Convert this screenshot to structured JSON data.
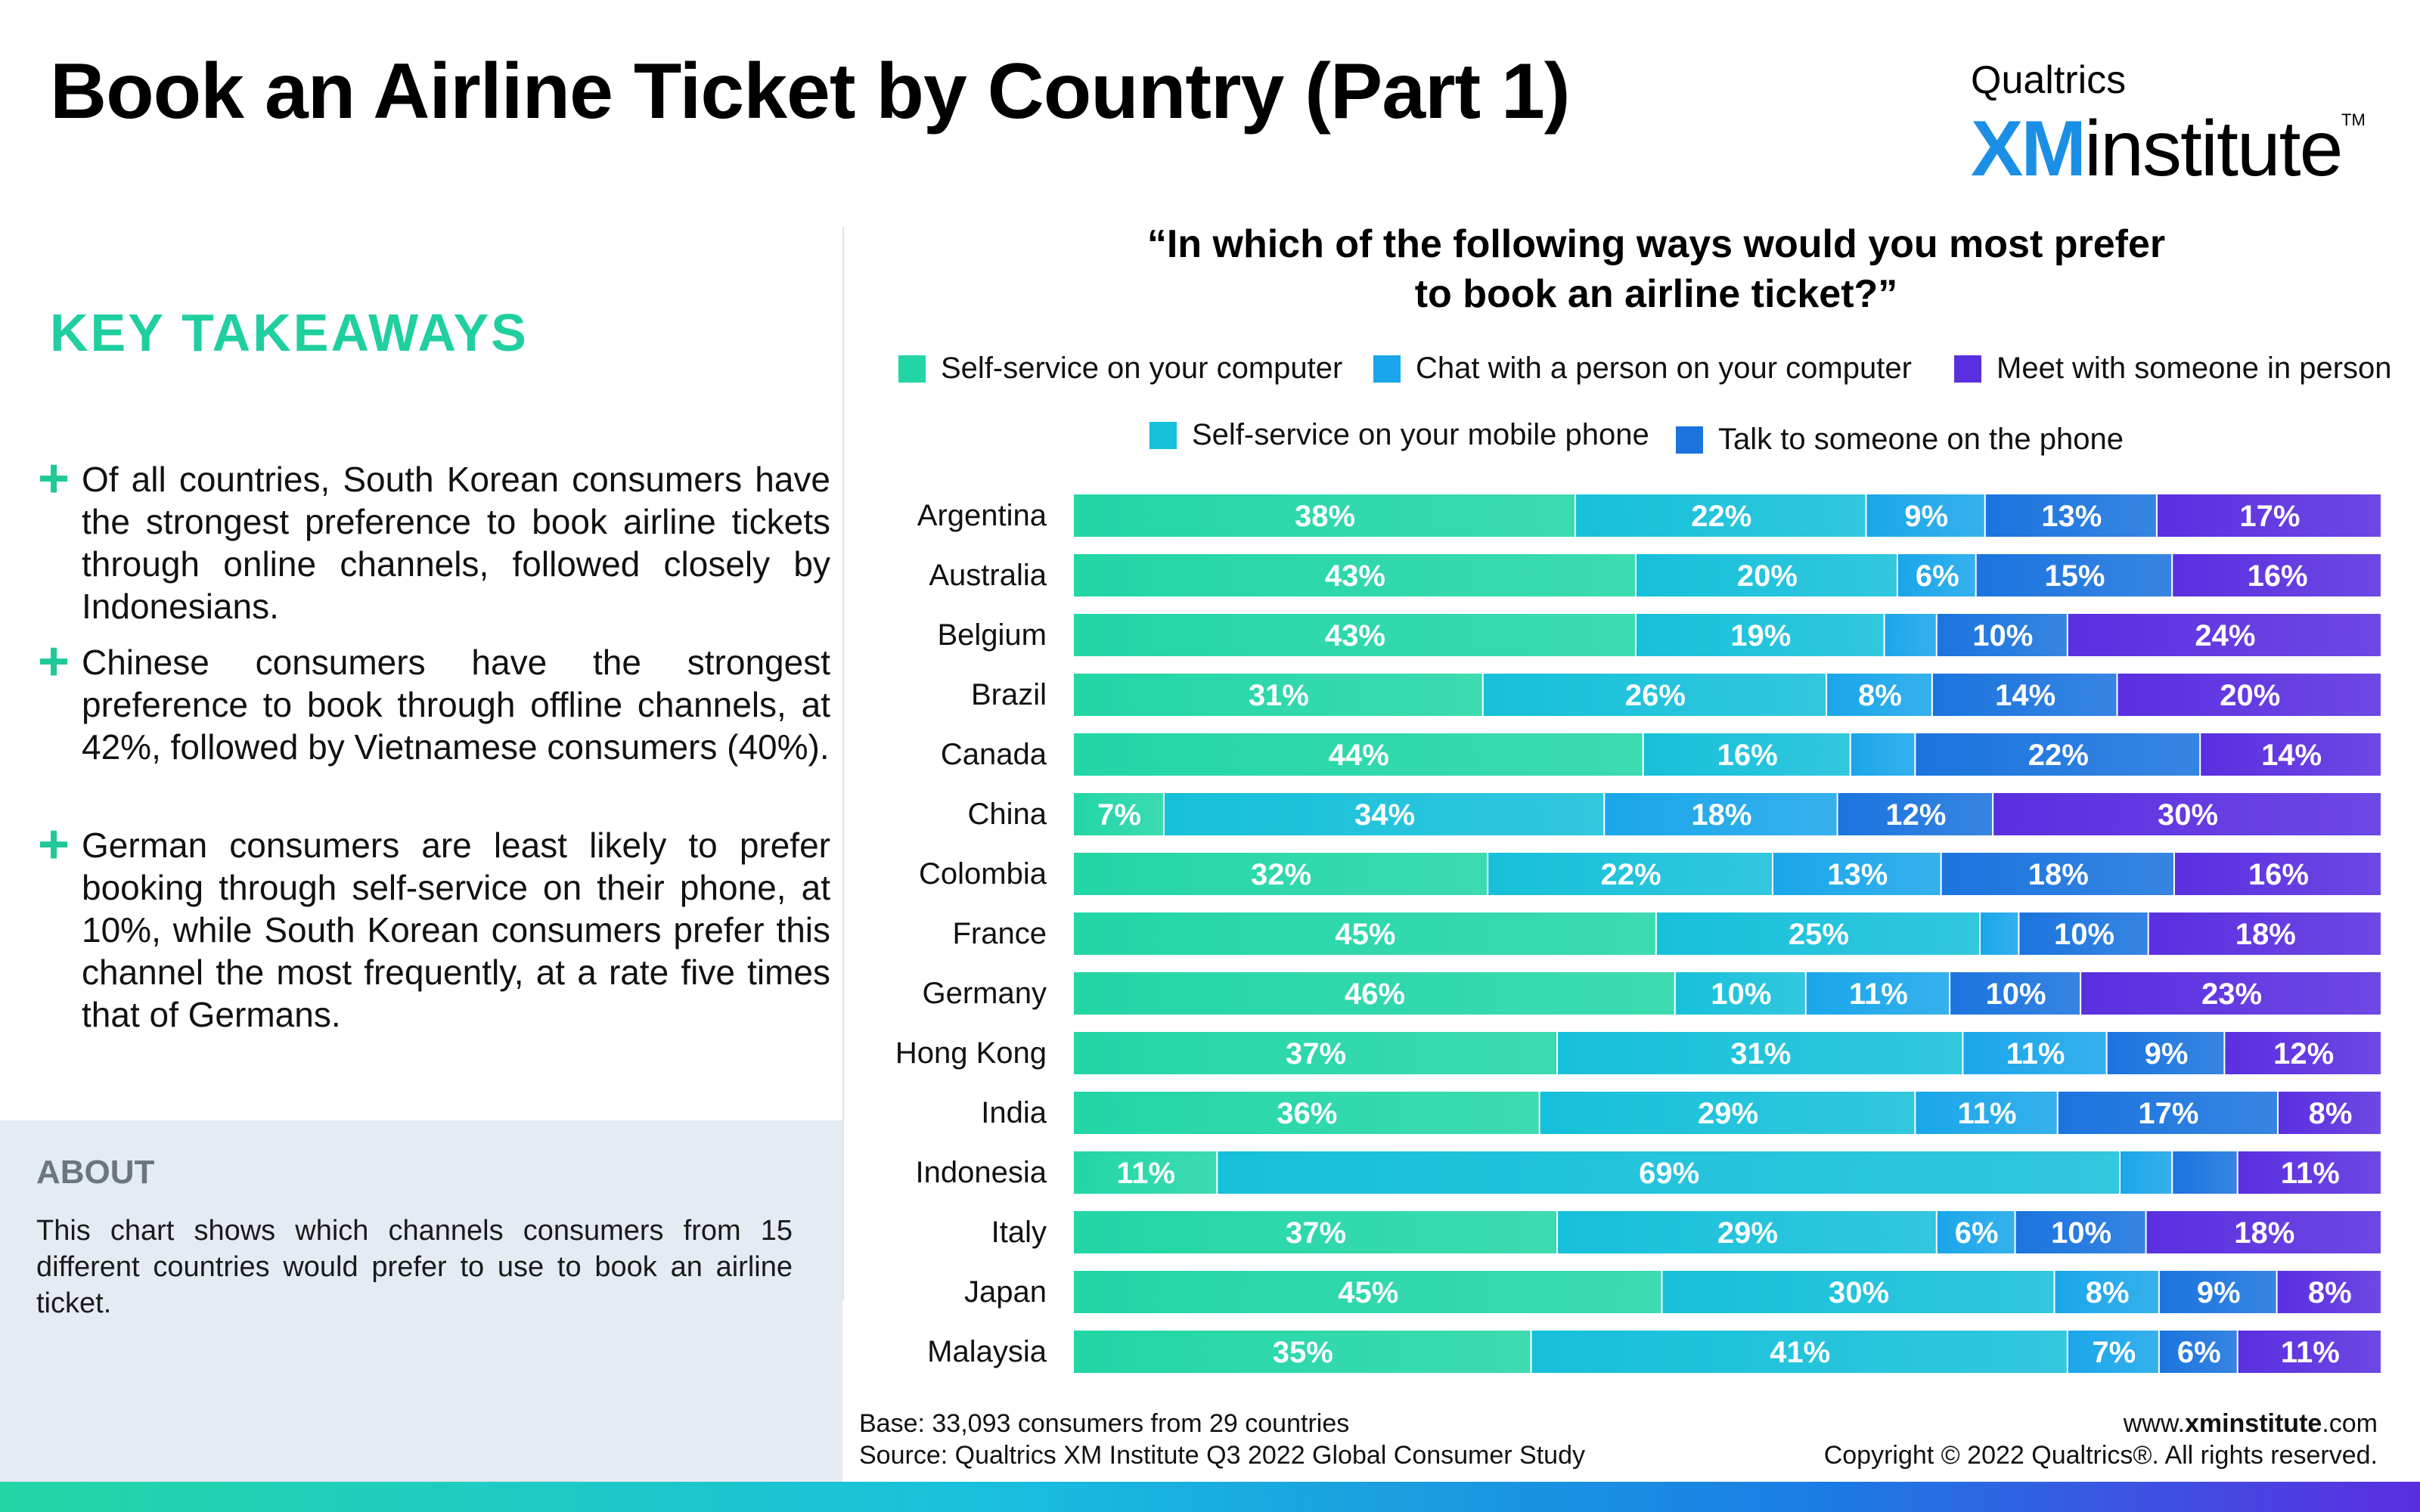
{
  "header": {
    "title": "Book an Airline Ticket by Country (Part 1)"
  },
  "brand": {
    "top": "Qualtrics",
    "xm": "XM",
    "rest": "institute",
    "tm": "TM"
  },
  "takeaways": {
    "title": "KEY TAKEAWAYS",
    "items": [
      "Of all countries, South Korean consumers have the strongest preference to book airline tickets through online channels, followed closely by Indonesians.",
      "Chinese consumers have the strongest preference to book through offline channels, at 42%, followed by Vietnamese consumers (40%).",
      "German consumers are least likely to prefer booking through self-service on their phone, at 10%, while South Korean consumers prefer this channel the most frequently, at a rate five times that of Germans."
    ]
  },
  "about": {
    "title": "ABOUT",
    "text": "This chart shows which channels consumers from 15 different countries would prefer to use to book an airline ticket."
  },
  "chart_data": {
    "type": "bar",
    "orientation": "horizontal",
    "stacked": true,
    "normalized": true,
    "title": "“In which of the following ways would you most prefer to book an airline ticket?”",
    "categories": [
      "Argentina",
      "Australia",
      "Belgium",
      "Brazil",
      "Canada",
      "China",
      "Colombia",
      "France",
      "Germany",
      "Hong Kong",
      "India",
      "Indonesia",
      "Italy",
      "Japan",
      "Malaysia"
    ],
    "series": [
      {
        "name": "Self-service on your computer",
        "color": "#22d6a6",
        "values": [
          38,
          43,
          43,
          31,
          44,
          7,
          32,
          45,
          46,
          37,
          36,
          11,
          37,
          45,
          35
        ]
      },
      {
        "name": "Self-service on your mobile phone",
        "color": "#16c0da",
        "values": [
          22,
          20,
          19,
          26,
          16,
          34,
          22,
          25,
          10,
          31,
          29,
          69,
          29,
          30,
          41
        ]
      },
      {
        "name": "Chat with a person on your computer",
        "color": "#1aa6ea",
        "values": [
          9,
          6,
          4,
          8,
          5,
          18,
          13,
          3,
          11,
          11,
          11,
          4,
          6,
          8,
          7
        ]
      },
      {
        "name": "Talk to someone on the phone",
        "color": "#1b74de",
        "values": [
          13,
          15,
          10,
          14,
          22,
          12,
          18,
          10,
          10,
          9,
          17,
          5,
          10,
          9,
          6
        ]
      },
      {
        "name": "Meet with someone in person",
        "color": "#5a2fe0",
        "values": [
          17,
          16,
          24,
          20,
          14,
          30,
          16,
          18,
          23,
          12,
          8,
          11,
          18,
          8,
          11
        ]
      }
    ],
    "data_labels": [
      [
        "38%",
        "22%",
        "9%",
        "13%",
        "17%"
      ],
      [
        "43%",
        "20%",
        "6%",
        "15%",
        "16%"
      ],
      [
        "43%",
        "19%",
        "",
        "10%",
        "24%"
      ],
      [
        "31%",
        "26%",
        "8%",
        "14%",
        "20%"
      ],
      [
        "44%",
        "16%",
        "",
        "22%",
        "14%"
      ],
      [
        "7%",
        "34%",
        "18%",
        "12%",
        "30%"
      ],
      [
        "32%",
        "22%",
        "13%",
        "18%",
        "16%"
      ],
      [
        "45%",
        "25%",
        "",
        "10%",
        "18%"
      ],
      [
        "46%",
        "10%",
        "11%",
        "10%",
        "23%"
      ],
      [
        "37%",
        "31%",
        "11%",
        "9%",
        "12%"
      ],
      [
        "36%",
        "29%",
        "11%",
        "17%",
        "8%"
      ],
      [
        "11%",
        "69%",
        "",
        "",
        "11%"
      ],
      [
        "37%",
        "29%",
        "6%",
        "10%",
        "18%"
      ],
      [
        "45%",
        "30%",
        "8%",
        "9%",
        "8%"
      ],
      [
        "35%",
        "41%",
        "7%",
        "6%",
        "11%"
      ]
    ],
    "legend_order": [
      "Self-service on your computer",
      "Chat with a person on your computer",
      "Meet with someone in person",
      "Self-service on your mobile phone",
      "Talk to someone on the phone"
    ],
    "legend_position": "top",
    "grid": false
  },
  "footer": {
    "base": "Base: 33,093 consumers from 29 countries",
    "source": "Source: Qualtrics XM Institute Q3 2022 Global Consumer Study",
    "website_prefix": "www.",
    "website_bold": "xminstitute",
    "website_suffix": ".com",
    "copyright": "Copyright © 2022 Qualtrics®. All rights reserved."
  }
}
